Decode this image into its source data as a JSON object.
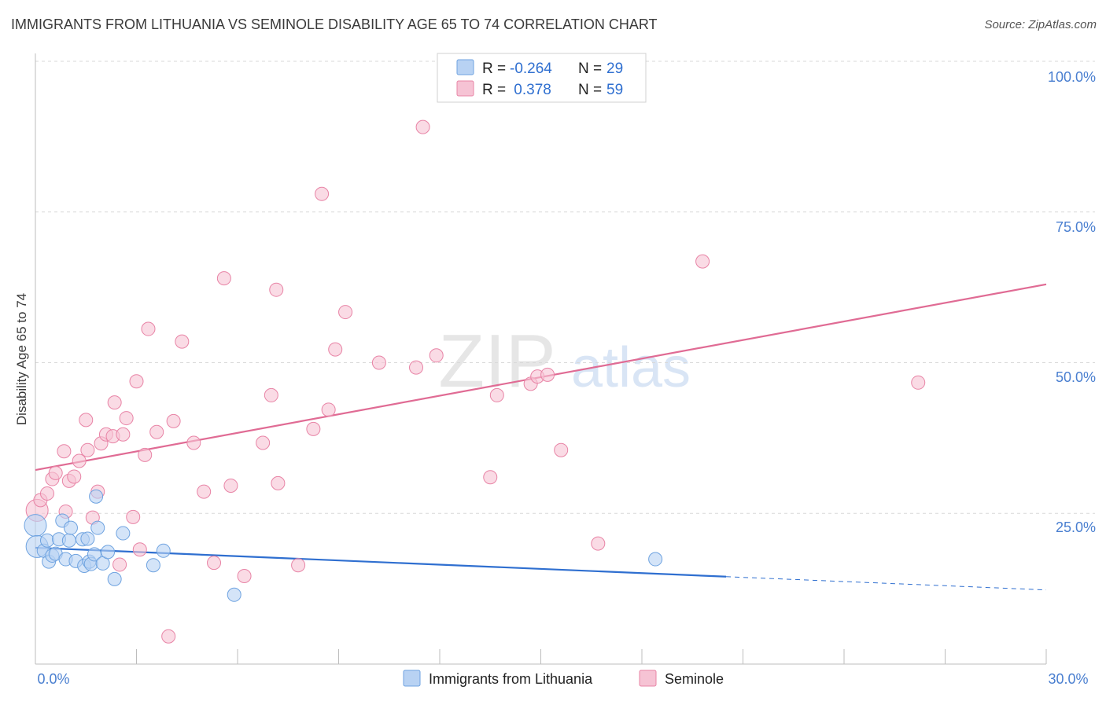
{
  "header": {
    "title": "IMMIGRANTS FROM LITHUANIA VS SEMINOLE DISABILITY AGE 65 TO 74 CORRELATION CHART",
    "source": "Source: ZipAtlas.com"
  },
  "watermark": {
    "zip": "ZIP",
    "atlas": "atlas"
  },
  "colors": {
    "blue": "#6fa3e0",
    "blue_fill": "#b8d2f3",
    "blue_line": "#2f6fd0",
    "pink": "#e884a6",
    "pink_fill": "#f6c3d4",
    "pink_line": "#e06b94",
    "axis_label": "#4a7fd0",
    "grid": "#d9d9d9"
  },
  "stats_legend": {
    "rows": [
      {
        "r_label": "R = ",
        "r_value": "-0.264",
        "n_label": "N = ",
        "n_value": "29"
      },
      {
        "r_label": "R = ",
        "r_value": " 0.378",
        "n_label": "N = ",
        "n_value": "59"
      }
    ]
  },
  "chart_data": {
    "type": "scatter",
    "title": "IMMIGRANTS FROM LITHUANIA VS SEMINOLE DISABILITY AGE 65 TO 74 CORRELATION CHART",
    "xlabel": "",
    "ylabel": "Disability Age 65 to 74",
    "xlim": [
      0,
      30
    ],
    "ylim": [
      0,
      100
    ],
    "x_tick_labels": [
      "0.0%",
      "30.0%"
    ],
    "y_ticks": [
      25,
      50,
      75,
      100
    ],
    "y_tick_labels": [
      "25.0%",
      "50.0%",
      "75.0%",
      "100.0%"
    ],
    "grid": true,
    "legend_position": "bottom",
    "series": [
      {
        "name": "Immigrants from Lithuania",
        "color": "#6fa3e0",
        "R": -0.264,
        "N": 29,
        "trend": {
          "x0": 0,
          "y0": 19.3,
          "x1": 20.5,
          "y1": 14.5,
          "dashed_to_x": 30,
          "dashed_to_y": 12.3
        },
        "points": [
          [
            0.0,
            23.0
          ],
          [
            0.05,
            19.5
          ],
          [
            0.25,
            18.8
          ],
          [
            0.35,
            20.5
          ],
          [
            0.4,
            17.0
          ],
          [
            0.5,
            18.0
          ],
          [
            0.6,
            18.3
          ],
          [
            0.7,
            20.7
          ],
          [
            0.8,
            23.8
          ],
          [
            0.9,
            17.4
          ],
          [
            1.0,
            20.5
          ],
          [
            1.05,
            22.6
          ],
          [
            1.2,
            17.1
          ],
          [
            1.4,
            20.7
          ],
          [
            1.45,
            16.3
          ],
          [
            1.55,
            20.8
          ],
          [
            1.6,
            17.0
          ],
          [
            1.65,
            16.6
          ],
          [
            1.75,
            18.2
          ],
          [
            1.8,
            27.8
          ],
          [
            1.85,
            22.6
          ],
          [
            2.0,
            16.7
          ],
          [
            2.15,
            18.6
          ],
          [
            2.35,
            14.1
          ],
          [
            2.6,
            21.7
          ],
          [
            3.5,
            16.4
          ],
          [
            3.8,
            18.8
          ],
          [
            5.9,
            11.5
          ],
          [
            18.4,
            17.4
          ]
        ]
      },
      {
        "name": "Seminole",
        "color": "#e884a6",
        "R": 0.378,
        "N": 59,
        "trend": {
          "x0": 0,
          "y0": 32.2,
          "x1": 30,
          "y1": 63.0
        },
        "points": [
          [
            0.05,
            25.5
          ],
          [
            0.15,
            27.2
          ],
          [
            0.35,
            28.3
          ],
          [
            0.5,
            30.7
          ],
          [
            0.6,
            31.7
          ],
          [
            0.85,
            35.3
          ],
          [
            1.0,
            30.4
          ],
          [
            1.15,
            31.1
          ],
          [
            1.3,
            33.7
          ],
          [
            1.5,
            40.5
          ],
          [
            1.55,
            35.5
          ],
          [
            1.7,
            24.3
          ],
          [
            1.85,
            28.6
          ],
          [
            1.95,
            36.6
          ],
          [
            2.1,
            38.1
          ],
          [
            2.3,
            37.8
          ],
          [
            2.35,
            43.4
          ],
          [
            2.5,
            16.5
          ],
          [
            2.6,
            38.1
          ],
          [
            2.7,
            40.8
          ],
          [
            2.9,
            24.4
          ],
          [
            3.0,
            46.9
          ],
          [
            3.1,
            19.0
          ],
          [
            3.25,
            34.7
          ],
          [
            3.35,
            55.6
          ],
          [
            3.6,
            38.5
          ],
          [
            3.95,
            4.6
          ],
          [
            4.1,
            40.3
          ],
          [
            4.35,
            53.5
          ],
          [
            4.7,
            36.7
          ],
          [
            5.0,
            28.6
          ],
          [
            5.3,
            16.8
          ],
          [
            5.6,
            64.0
          ],
          [
            5.8,
            29.6
          ],
          [
            6.2,
            14.6
          ],
          [
            6.75,
            36.7
          ],
          [
            7.0,
            44.6
          ],
          [
            7.15,
            62.1
          ],
          [
            7.2,
            30.0
          ],
          [
            7.8,
            16.4
          ],
          [
            8.25,
            39.0
          ],
          [
            8.5,
            78.0
          ],
          [
            8.7,
            42.2
          ],
          [
            8.9,
            52.2
          ],
          [
            9.2,
            58.4
          ],
          [
            10.2,
            50.0
          ],
          [
            11.3,
            49.2
          ],
          [
            11.5,
            89.1
          ],
          [
            11.9,
            51.2
          ],
          [
            13.5,
            31.0
          ],
          [
            13.7,
            44.6
          ],
          [
            14.7,
            46.5
          ],
          [
            14.9,
            47.7
          ],
          [
            15.2,
            48.0
          ],
          [
            15.6,
            35.5
          ],
          [
            16.7,
            20.0
          ],
          [
            19.8,
            66.8
          ],
          [
            26.2,
            46.7
          ],
          [
            0.9,
            25.3
          ]
        ]
      }
    ]
  }
}
